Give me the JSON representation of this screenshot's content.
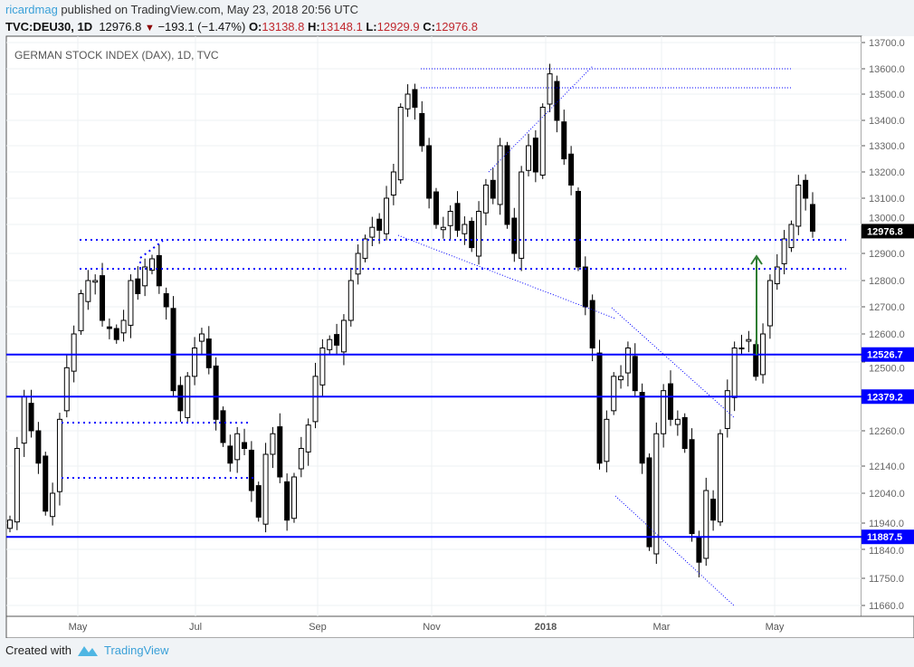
{
  "header": {
    "user": "ricardmag",
    "published": "published on TradingView.com, May 23, 2018 20:56 UTC",
    "symbol": "TVC:DEU30, 1D",
    "last": "12976.8",
    "change": "−193.1 (−1.47%)",
    "o_label": "O:",
    "o": "13138.8",
    "h_label": "H:",
    "h": "13148.1",
    "l_label": "L:",
    "l": "12929.9",
    "c_label": "C:",
    "c": "12976.8"
  },
  "footer": {
    "created": "Created with",
    "brand": "TradingView"
  },
  "colors": {
    "level": "#0000ff",
    "arrow": "#2e7d32",
    "down": "#000000",
    "up": "#ffffff"
  },
  "chart_data": {
    "type": "candlestick",
    "title": "GERMAN STOCK INDEX (DAX), 1D, TVC",
    "x_ticks": [
      "May",
      "Jul",
      "Sep",
      "Nov",
      "2018",
      "Mar",
      "May"
    ],
    "y_ticks": [
      13700,
      13600,
      13500,
      13400,
      13300,
      13200,
      13100,
      13000,
      12900,
      12800,
      12700,
      12600,
      12500,
      12260,
      12140,
      12040,
      11940,
      11840,
      11750,
      11660
    ],
    "price_labels": [
      {
        "label": "12976.8",
        "value": 12976.8,
        "color": "#000000"
      },
      {
        "label": "12526.7",
        "value": 12526.7,
        "color": "#0000ff"
      },
      {
        "label": "12379.2",
        "value": 12379.2,
        "color": "#0000ff"
      },
      {
        "label": "11887.5",
        "value": 11887.5,
        "color": "#0000ff"
      }
    ],
    "levels": [
      12526.7,
      12379.2,
      11887.5
    ],
    "close": [
      11950,
      12200,
      12380,
      12260,
      12150,
      11980,
      12040,
      12300,
      12480,
      12600,
      12750,
      12800,
      12800,
      12650,
      12620,
      12580,
      12650,
      12800,
      12750,
      12850,
      12880,
      12780,
      12700,
      12400,
      12330,
      12450,
      12550,
      12600,
      12480,
      12300,
      12220,
      12150,
      12250,
      12200,
      12050,
      11960,
      12180,
      12250,
      12100,
      11950,
      12100,
      12200,
      12280,
      12450,
      12550,
      12580,
      12560,
      12650,
      12800,
      12900,
      12950,
      12990,
      12980,
      13100,
      13200,
      13450,
      13500,
      13450,
      13300,
      13100,
      13000,
      12990,
      13050,
      12980,
      13000,
      12920,
      13050,
      13150,
      13100,
      13300,
      13000,
      12900,
      13200,
      13300,
      13200,
      13450,
      13580,
      13400,
      13250,
      13150,
      12850,
      12700,
      12550,
      12150,
      12300,
      12450,
      12450,
      12550,
      12400,
      12150,
      11850,
      12250,
      12400,
      12300,
      12300,
      12200,
      11900,
      11800,
      12050,
      11950,
      12250,
      12400,
      12550,
      12550,
      12580,
      12450,
      12600,
      12800,
      12850,
      12950,
      13000,
      13150,
      13100,
      12976.8
    ]
  }
}
